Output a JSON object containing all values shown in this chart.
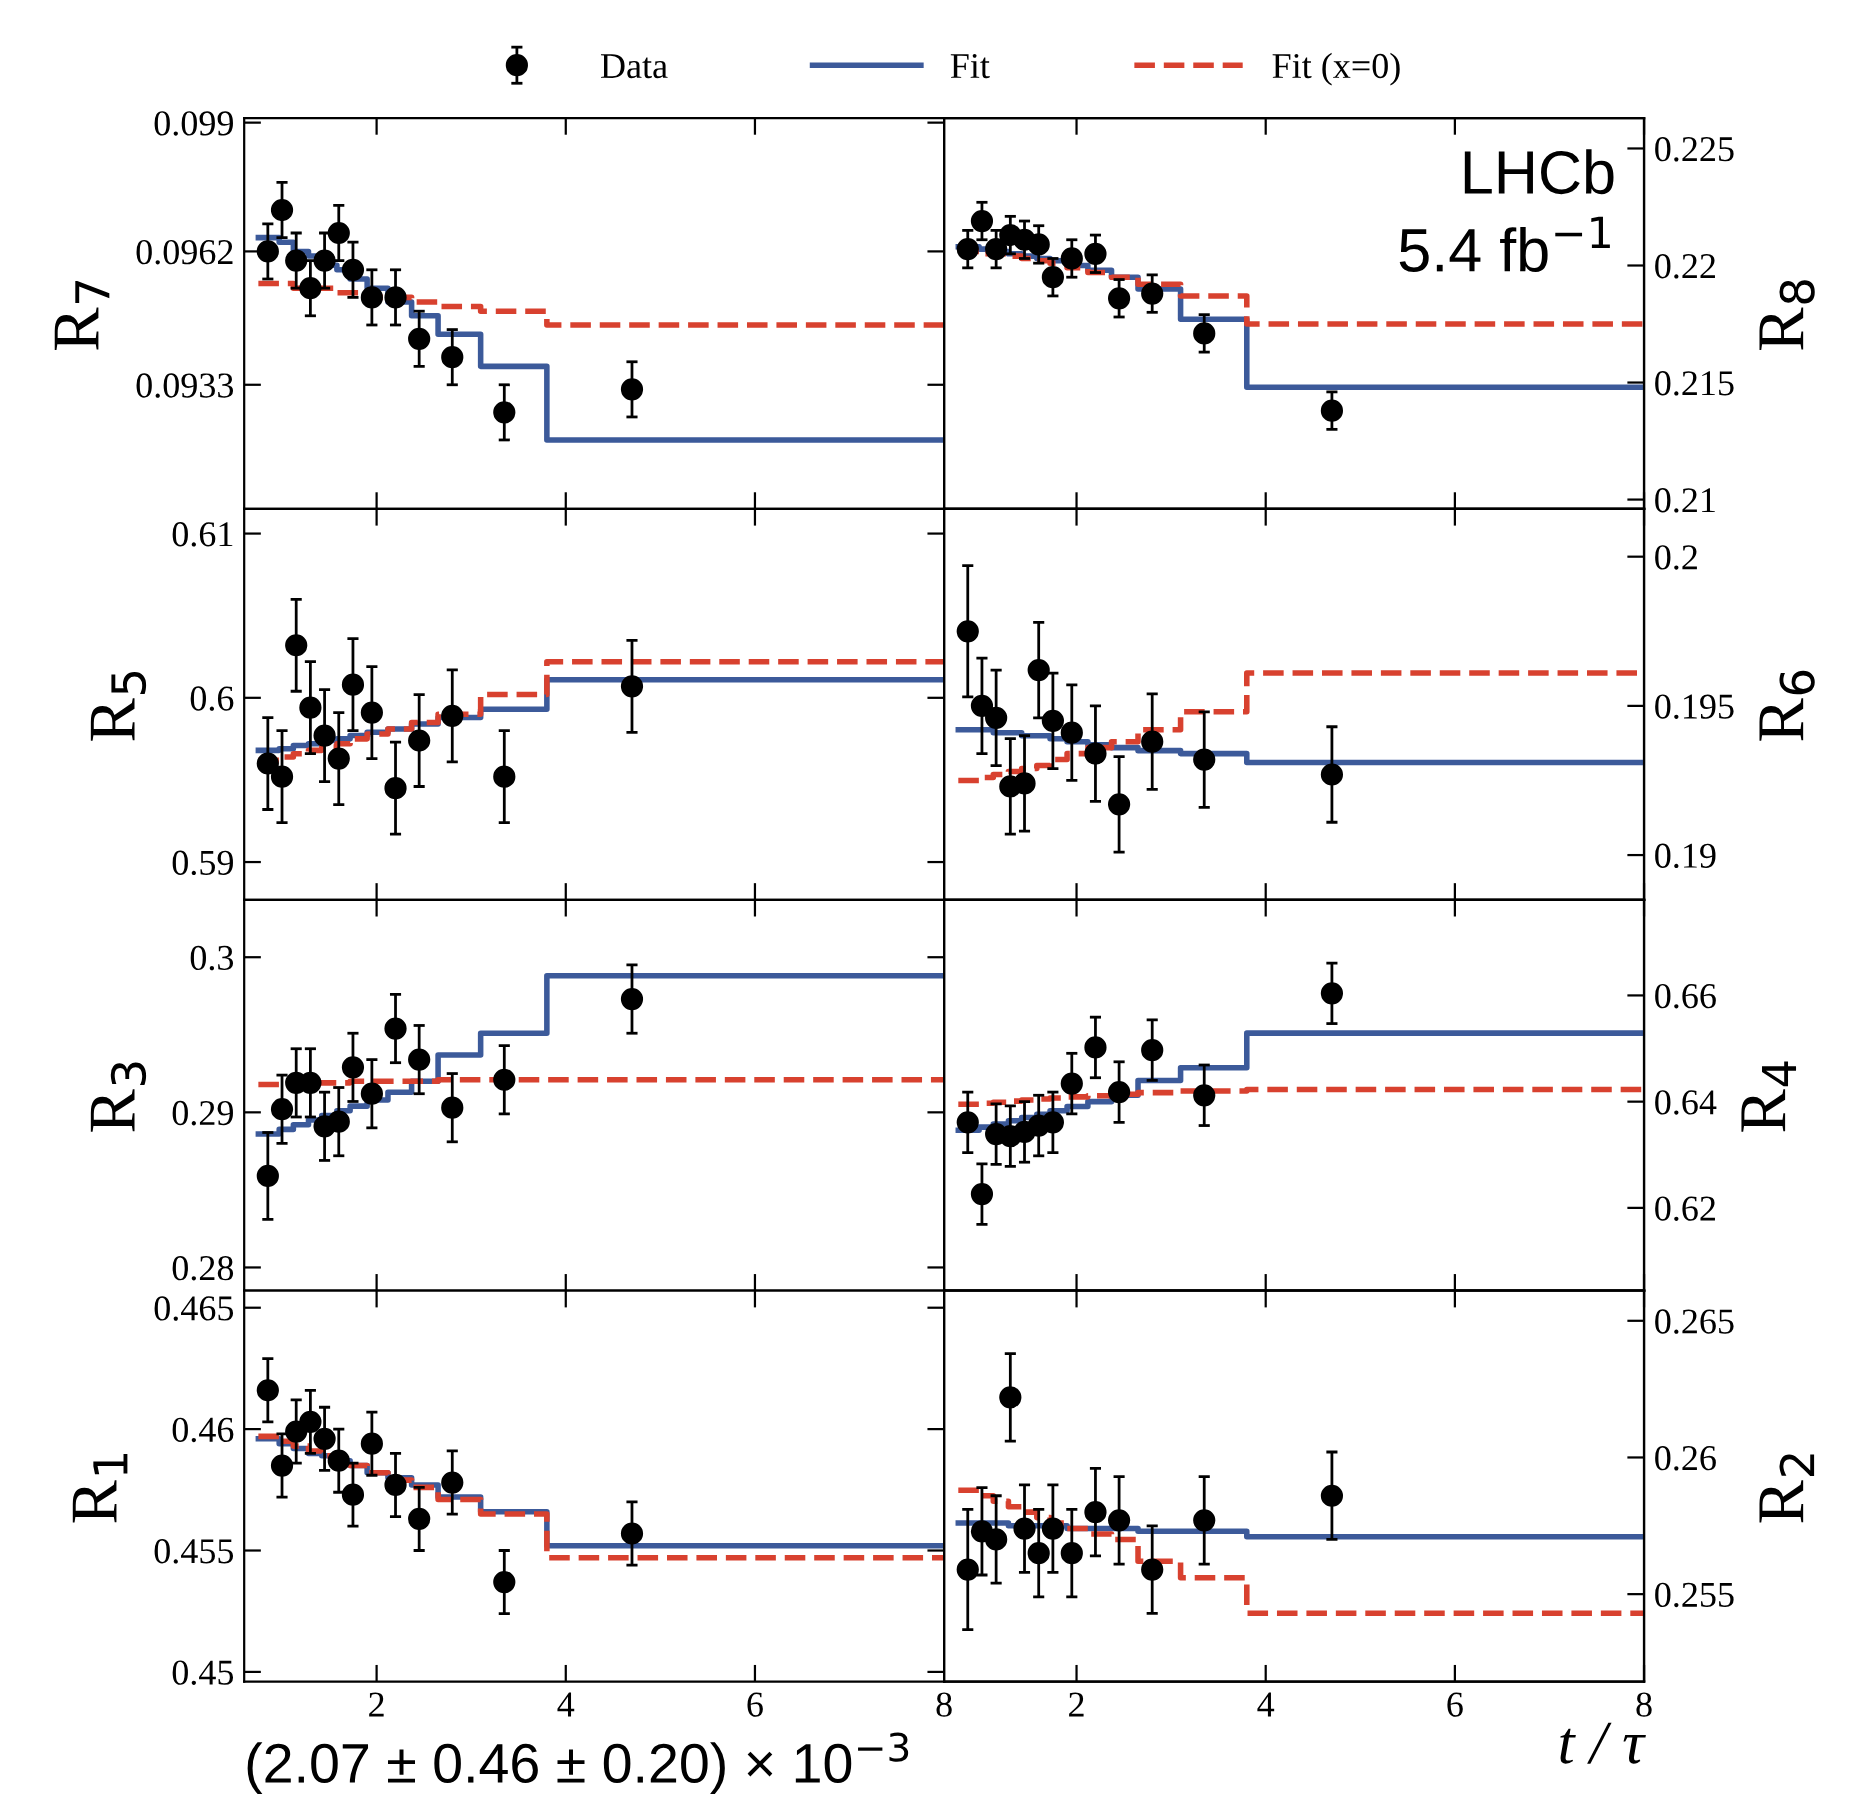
{
  "chart_data": [
    {
      "type": "scatter",
      "ylabel": "R$_{7}$",
      "xlim": [
        0.6,
        8
      ],
      "xticks": [
        2,
        4,
        6,
        8
      ],
      "ylim": [
        0.0906,
        0.0991
      ],
      "yticks": [
        0.0933,
        0.0962,
        0.099
      ],
      "tick_labels": "y",
      "legend": "top",
      "grid": false,
      "series": [
        {
          "name": "Data",
          "marker": "circle",
          "color": "#000000",
          "x": [
            0.85,
            1.0,
            1.15,
            1.3,
            1.45,
            1.6,
            1.75,
            1.95,
            2.2,
            2.45,
            2.8,
            3.35,
            4.7
          ],
          "values": [
            0.0962,
            0.0971,
            0.096,
            0.0954,
            0.096,
            0.0966,
            0.0958,
            0.0952,
            0.0952,
            0.0943,
            0.0939,
            0.0927,
            0.0932
          ],
          "errors": [
            0.0006,
            0.0006,
            0.0006,
            0.0006,
            0.0006,
            0.0006,
            0.0006,
            0.0006,
            0.0006,
            0.0006,
            0.0006,
            0.0006,
            0.0006
          ]
        },
        {
          "name": "Fit",
          "type": "step",
          "color": "#3c5a9a",
          "line_style": "solid",
          "x": [
            0.75,
            0.97,
            1.12,
            1.28,
            1.42,
            1.58,
            1.72,
            1.9,
            2.12,
            2.37,
            2.65,
            3.1,
            3.8,
            8
          ],
          "values": [
            0.0965,
            0.0964,
            0.0962,
            0.0961,
            0.0959,
            0.0958,
            0.0956,
            0.0954,
            0.0951,
            0.0948,
            0.0944,
            0.0937,
            0.0921,
            0.0921
          ]
        },
        {
          "name": "Fit (x=0)",
          "type": "step",
          "color": "#d8412f",
          "line_style": "dashed",
          "x": [
            0.75,
            0.97,
            1.12,
            1.28,
            1.42,
            1.58,
            1.72,
            1.9,
            2.12,
            2.37,
            2.65,
            3.1,
            3.8,
            8
          ],
          "values": [
            0.0955,
            0.0955,
            0.0954,
            0.0954,
            0.0954,
            0.0953,
            0.0953,
            0.0952,
            0.0952,
            0.0951,
            0.095,
            0.0949,
            0.0946,
            0.0946
          ]
        }
      ]
    },
    {
      "type": "scatter",
      "y2label": "R$_{8}$",
      "xlim": [
        0.6,
        8
      ],
      "xticks": [
        2,
        4,
        6,
        8
      ],
      "y2lim": [
        0.2096,
        0.2263
      ],
      "y2ticks": [
        0.21,
        0.215,
        0.22,
        0.225
      ],
      "tick_labels": "y",
      "grid": false,
      "annotations": [
        "LHCb",
        "5.4 fb$^{−1}$"
      ],
      "series": [
        {
          "marker": "circle",
          "axis": "y2",
          "color": "#000000",
          "x": [
            0.85,
            1.0,
            1.15,
            1.3,
            1.45,
            1.6,
            1.75,
            1.95,
            2.2,
            2.45,
            2.8,
            3.35,
            4.7
          ],
          "values": [
            0.2207,
            0.2219,
            0.2207,
            0.2213,
            0.2211,
            0.2209,
            0.2195,
            0.2203,
            0.2205,
            0.2186,
            0.2188,
            0.2171,
            0.2138
          ],
          "errors": [
            0.0008,
            0.0008,
            0.0008,
            0.0008,
            0.0008,
            0.0008,
            0.0008,
            0.0008,
            0.0008,
            0.0008,
            0.0008,
            0.0008,
            0.0008
          ]
        },
        {
          "type": "step",
          "axis": "y2",
          "color": "#3c5a9a",
          "line_style": "solid",
          "x": [
            0.75,
            0.97,
            1.12,
            1.28,
            1.42,
            1.58,
            1.72,
            1.9,
            2.12,
            2.37,
            2.65,
            3.1,
            3.8,
            8
          ],
          "values": [
            0.2208,
            0.2207,
            0.2206,
            0.2205,
            0.2204,
            0.2203,
            0.2202,
            0.22,
            0.2198,
            0.2195,
            0.219,
            0.2177,
            0.2148,
            0.2148
          ]
        },
        {
          "type": "step",
          "axis": "y2",
          "color": "#d8412f",
          "line_style": "dashed",
          "x": [
            0.75,
            0.97,
            1.12,
            1.28,
            1.42,
            1.58,
            1.72,
            1.9,
            2.12,
            2.37,
            2.65,
            3.1,
            3.8,
            8
          ],
          "values": [
            0.2206,
            0.2205,
            0.2205,
            0.2204,
            0.2203,
            0.2202,
            0.2201,
            0.2199,
            0.2197,
            0.2195,
            0.2192,
            0.2187,
            0.2175,
            0.2175
          ]
        }
      ]
    },
    {
      "type": "scatter",
      "ylabel": "R$_{5}$",
      "xlim": [
        0.6,
        8
      ],
      "xticks": [
        2,
        4,
        6,
        8
      ],
      "ylim": [
        0.5877,
        0.6115
      ],
      "yticks": [
        0.59,
        0.6,
        0.61
      ],
      "tick_labels": "y",
      "grid": false,
      "series": [
        {
          "marker": "circle",
          "color": "#000000",
          "x": [
            0.85,
            1.0,
            1.15,
            1.3,
            1.45,
            1.6,
            1.75,
            1.95,
            2.2,
            2.45,
            2.8,
            3.35,
            4.7
          ],
          "values": [
            0.596,
            0.5952,
            0.6032,
            0.5994,
            0.5977,
            0.5963,
            0.6008,
            0.5991,
            0.5945,
            0.5974,
            0.5989,
            0.5952,
            0.6007
          ],
          "errors": [
            0.0028,
            0.0028,
            0.0028,
            0.0028,
            0.0028,
            0.0028,
            0.0028,
            0.0028,
            0.0028,
            0.0028,
            0.0028,
            0.0028,
            0.0028
          ]
        },
        {
          "type": "step",
          "color": "#3c5a9a",
          "line_style": "solid",
          "x": [
            0.75,
            0.97,
            1.12,
            1.28,
            1.42,
            1.58,
            1.72,
            1.9,
            2.12,
            2.37,
            2.65,
            3.1,
            3.8,
            8
          ],
          "values": [
            0.5968,
            0.5969,
            0.5971,
            0.5972,
            0.5974,
            0.5975,
            0.5977,
            0.5979,
            0.5981,
            0.5984,
            0.5988,
            0.5993,
            0.6011,
            0.6011
          ]
        },
        {
          "type": "step",
          "color": "#d8412f",
          "line_style": "dashed",
          "x": [
            0.75,
            0.97,
            1.12,
            1.28,
            1.42,
            1.58,
            1.72,
            1.9,
            2.12,
            2.37,
            2.65,
            3.1,
            3.8,
            8
          ],
          "values": [
            0.5962,
            0.5964,
            0.5966,
            0.5968,
            0.597,
            0.5972,
            0.5975,
            0.5978,
            0.5981,
            0.5985,
            0.599,
            0.6002,
            0.6022,
            0.6022
          ]
        }
      ]
    },
    {
      "type": "scatter",
      "y2label": "R$_{6}$",
      "xlim": [
        0.6,
        8
      ],
      "xticks": [
        2,
        4,
        6,
        8
      ],
      "y2lim": [
        0.1885,
        0.2016
      ],
      "y2ticks": [
        0.19,
        0.195,
        0.2
      ],
      "tick_labels": "y",
      "grid": false,
      "series": [
        {
          "marker": "circle",
          "axis": "y2",
          "color": "#000000",
          "x": [
            0.85,
            1.0,
            1.15,
            1.3,
            1.45,
            1.6,
            1.75,
            1.95,
            2.2,
            2.45,
            2.8,
            3.35,
            4.7
          ],
          "values": [
            0.1975,
            0.195,
            0.1946,
            0.1923,
            0.1924,
            0.1962,
            0.1945,
            0.1941,
            0.1934,
            0.1917,
            0.1938,
            0.1932,
            0.1927
          ],
          "errors": [
            0.0022,
            0.0016,
            0.0016,
            0.0016,
            0.0016,
            0.0016,
            0.0016,
            0.0016,
            0.0016,
            0.0016,
            0.0016,
            0.0016,
            0.0016
          ]
        },
        {
          "type": "step",
          "axis": "y2",
          "color": "#3c5a9a",
          "line_style": "solid",
          "x": [
            0.75,
            0.97,
            1.12,
            1.28,
            1.42,
            1.58,
            1.72,
            1.9,
            2.12,
            2.37,
            2.65,
            3.1,
            3.8,
            8
          ],
          "values": [
            0.1942,
            0.1942,
            0.1941,
            0.1941,
            0.194,
            0.194,
            0.1939,
            0.1938,
            0.1937,
            0.1936,
            0.1935,
            0.1934,
            0.1931,
            0.1931
          ]
        },
        {
          "type": "step",
          "axis": "y2",
          "color": "#d8412f",
          "line_style": "dashed",
          "x": [
            0.75,
            0.97,
            1.12,
            1.28,
            1.42,
            1.58,
            1.72,
            1.9,
            2.12,
            2.37,
            2.65,
            3.1,
            3.8,
            8
          ],
          "values": [
            0.1925,
            0.1926,
            0.1927,
            0.1928,
            0.1929,
            0.193,
            0.1932,
            0.1934,
            0.1936,
            0.1938,
            0.1942,
            0.1948,
            0.1961,
            0.1961
          ]
        }
      ]
    },
    {
      "type": "scatter",
      "ylabel": "R$_{3}$",
      "xlim": [
        0.6,
        8
      ],
      "xticks": [
        2,
        4,
        6,
        8
      ],
      "ylim": [
        0.2785,
        0.3037
      ],
      "yticks": [
        0.28,
        0.29,
        0.3
      ],
      "tick_labels": "y",
      "grid": false,
      "series": [
        {
          "marker": "circle",
          "color": "#000000",
          "x": [
            0.85,
            1.0,
            1.15,
            1.3,
            1.45,
            1.6,
            1.75,
            1.95,
            2.2,
            2.45,
            2.8,
            3.35,
            4.7
          ],
          "values": [
            0.2859,
            0.2902,
            0.2919,
            0.2919,
            0.2891,
            0.2894,
            0.2929,
            0.2912,
            0.2954,
            0.2934,
            0.2903,
            0.2921,
            0.2973
          ],
          "errors": [
            0.0028,
            0.0022,
            0.0022,
            0.0022,
            0.0022,
            0.0022,
            0.0022,
            0.0022,
            0.0022,
            0.0022,
            0.0022,
            0.0022,
            0.0022
          ]
        },
        {
          "type": "step",
          "color": "#3c5a9a",
          "line_style": "solid",
          "x": [
            0.75,
            0.97,
            1.12,
            1.28,
            1.42,
            1.58,
            1.72,
            1.9,
            2.12,
            2.37,
            2.65,
            3.1,
            3.8,
            8
          ],
          "values": [
            0.2886,
            0.2889,
            0.2892,
            0.2895,
            0.2898,
            0.2901,
            0.2904,
            0.2908,
            0.2913,
            0.292,
            0.2937,
            0.2951,
            0.2988,
            0.2988
          ]
        },
        {
          "type": "step",
          "color": "#d8412f",
          "line_style": "dashed",
          "x": [
            0.75,
            0.97,
            1.12,
            1.28,
            1.42,
            1.58,
            1.72,
            1.9,
            2.12,
            2.37,
            2.65,
            3.1,
            3.8,
            8
          ],
          "values": [
            0.2918,
            0.2918,
            0.2919,
            0.2919,
            0.2919,
            0.2919,
            0.292,
            0.292,
            0.292,
            0.292,
            0.2921,
            0.2921,
            0.2921,
            0.2921
          ]
        }
      ]
    },
    {
      "type": "scatter",
      "y2label": "R$_{4}$",
      "xlim": [
        0.6,
        8
      ],
      "xticks": [
        2,
        4,
        6,
        8
      ],
      "y2lim": [
        0.6044,
        0.678
      ],
      "y2ticks": [
        0.62,
        0.64,
        0.66
      ],
      "tick_labels": "y",
      "grid": false,
      "series": [
        {
          "marker": "circle",
          "axis": "y2",
          "color": "#000000",
          "x": [
            0.85,
            1.0,
            1.15,
            1.3,
            1.45,
            1.6,
            1.75,
            1.95,
            2.2,
            2.45,
            2.8,
            3.35,
            4.7
          ],
          "values": [
            0.6361,
            0.6226,
            0.6339,
            0.6335,
            0.6343,
            0.6355,
            0.6361,
            0.6434,
            0.6502,
            0.6418,
            0.6497,
            0.6412,
            0.6604
          ],
          "errors": [
            0.0057,
            0.0057,
            0.0057,
            0.0057,
            0.0057,
            0.0057,
            0.0057,
            0.0057,
            0.0057,
            0.0057,
            0.0057,
            0.0057,
            0.0057
          ]
        },
        {
          "type": "step",
          "axis": "y2",
          "color": "#3c5a9a",
          "line_style": "solid",
          "x": [
            0.75,
            0.97,
            1.12,
            1.28,
            1.42,
            1.58,
            1.72,
            1.9,
            2.12,
            2.37,
            2.65,
            3.1,
            3.8,
            8
          ],
          "values": [
            0.6346,
            0.6352,
            0.6358,
            0.6364,
            0.637,
            0.6376,
            0.6383,
            0.6391,
            0.64,
            0.6412,
            0.644,
            0.6464,
            0.6529,
            0.6529
          ]
        },
        {
          "type": "step",
          "axis": "y2",
          "color": "#d8412f",
          "line_style": "dashed",
          "x": [
            0.75,
            0.97,
            1.12,
            1.28,
            1.42,
            1.58,
            1.72,
            1.9,
            2.12,
            2.37,
            2.65,
            3.1,
            3.8,
            8
          ],
          "values": [
            0.6395,
            0.6397,
            0.6399,
            0.6401,
            0.6403,
            0.6405,
            0.6407,
            0.6409,
            0.6411,
            0.6414,
            0.6417,
            0.642,
            0.6423,
            0.6423
          ]
        }
      ]
    },
    {
      "type": "scatter",
      "ylabel": "R$_{1}$",
      "xlim": [
        0.6,
        8
      ],
      "xticks": [
        2,
        4,
        6,
        8
      ],
      "ylim": [
        0.4496,
        0.4657
      ],
      "yticks": [
        0.45,
        0.455,
        0.46,
        0.465
      ],
      "grid": false,
      "annotations": [
        "(2.07 ± 0.46 ± 0.20) × 10$^{−3}$"
      ],
      "series": [
        {
          "marker": "circle",
          "color": "#000000",
          "x": [
            0.85,
            1.0,
            1.15,
            1.3,
            1.45,
            1.6,
            1.75,
            1.95,
            2.2,
            2.45,
            2.8,
            3.35,
            4.7
          ],
          "values": [
            0.4616,
            0.4585,
            0.4599,
            0.4603,
            0.4596,
            0.4587,
            0.4573,
            0.4594,
            0.4577,
            0.4563,
            0.4578,
            0.4537,
            0.4557
          ],
          "errors": [
            0.0013,
            0.0013,
            0.0013,
            0.0013,
            0.0013,
            0.0013,
            0.0013,
            0.0013,
            0.0013,
            0.0013,
            0.0013,
            0.0013,
            0.0013
          ]
        },
        {
          "type": "step",
          "color": "#3c5a9a",
          "line_style": "solid",
          "x": [
            0.75,
            0.97,
            1.12,
            1.28,
            1.42,
            1.58,
            1.72,
            1.9,
            2.12,
            2.37,
            2.65,
            3.1,
            3.8,
            8
          ],
          "values": [
            0.4596,
            0.4594,
            0.4592,
            0.459,
            0.4589,
            0.4587,
            0.4585,
            0.4582,
            0.458,
            0.4577,
            0.4572,
            0.4566,
            0.4552,
            0.4552
          ]
        },
        {
          "type": "step",
          "color": "#d8412f",
          "line_style": "dashed",
          "x": [
            0.75,
            0.97,
            1.12,
            1.28,
            1.42,
            1.58,
            1.72,
            1.9,
            2.12,
            2.37,
            2.65,
            3.1,
            3.8,
            8
          ],
          "values": [
            0.4597,
            0.4595,
            0.4593,
            0.4591,
            0.4589,
            0.4587,
            0.4585,
            0.4582,
            0.4579,
            0.4576,
            0.4571,
            0.4565,
            0.4547,
            0.4547
          ]
        }
      ]
    },
    {
      "type": "scatter",
      "y2label": "R$_{2}$",
      "xlabel": "t / τ",
      "xlim": [
        0.6,
        8
      ],
      "xticks": [
        2,
        4,
        6,
        8
      ],
      "y2lim": [
        0.2518,
        0.2661
      ],
      "y2ticks": [
        0.255,
        0.26,
        0.265
      ],
      "grid": false,
      "series": [
        {
          "marker": "circle",
          "axis": "y2",
          "color": "#000000",
          "x": [
            0.85,
            1.0,
            1.15,
            1.3,
            1.45,
            1.6,
            1.75,
            1.95,
            2.2,
            2.45,
            2.8,
            3.35,
            4.7
          ],
          "values": [
            0.2559,
            0.2573,
            0.257,
            0.2622,
            0.2574,
            0.2565,
            0.2574,
            0.2565,
            0.258,
            0.2577,
            0.2559,
            0.2577,
            0.2586
          ],
          "errors": [
            0.0022,
            0.0016,
            0.0016,
            0.0016,
            0.0016,
            0.0016,
            0.0016,
            0.0016,
            0.0016,
            0.0016,
            0.0016,
            0.0016,
            0.0016
          ]
        },
        {
          "type": "step",
          "axis": "y2",
          "color": "#3c5a9a",
          "line_style": "solid",
          "x": [
            0.75,
            0.97,
            1.12,
            1.28,
            1.42,
            1.58,
            1.72,
            1.9,
            2.12,
            2.37,
            2.65,
            3.1,
            3.8,
            8
          ],
          "values": [
            0.2576,
            0.2576,
            0.2576,
            0.2575,
            0.2575,
            0.2575,
            0.2575,
            0.2574,
            0.2574,
            0.2574,
            0.2573,
            0.2573,
            0.2571,
            0.2571
          ]
        },
        {
          "type": "step",
          "axis": "y2",
          "color": "#d8412f",
          "line_style": "dashed",
          "x": [
            0.75,
            0.97,
            1.12,
            1.28,
            1.42,
            1.58,
            1.72,
            1.9,
            2.12,
            2.37,
            2.65,
            3.1,
            3.8,
            8
          ],
          "values": [
            0.2588,
            0.2586,
            0.2584,
            0.2582,
            0.258,
            0.2578,
            0.2576,
            0.2574,
            0.2572,
            0.257,
            0.2562,
            0.2556,
            0.2543,
            0.2543
          ]
        }
      ]
    }
  ]
}
